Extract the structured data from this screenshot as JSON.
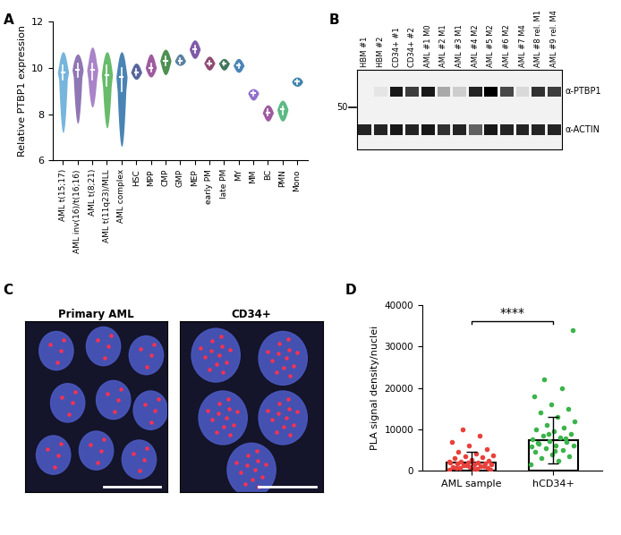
{
  "panel_labels": [
    "A",
    "B",
    "C",
    "D"
  ],
  "chart_data": [
    {
      "type": "violin",
      "ylabel": "Relative PTBP1 expression",
      "categories": [
        "AML t(15;17)",
        "AML inv(16)/t(16;16)",
        "AML t(8;21)",
        "AML t(11q23)/MLL",
        "AML complex",
        "HSC",
        "MPP",
        "CMP",
        "GMP",
        "MEP",
        "early PM",
        "late PM",
        "MY",
        "MM",
        "BC",
        "PMN",
        "Mono"
      ],
      "stats": [
        {
          "min": 7.2,
          "q1": 9.5,
          "median": 9.8,
          "q3": 10.1,
          "max": 10.7
        },
        {
          "min": 7.6,
          "q1": 9.6,
          "median": 9.9,
          "q3": 10.2,
          "max": 10.6
        },
        {
          "min": 8.3,
          "q1": 9.5,
          "median": 9.9,
          "q3": 10.2,
          "max": 10.9
        },
        {
          "min": 7.4,
          "q1": 9.2,
          "median": 9.7,
          "q3": 10.1,
          "max": 10.7
        },
        {
          "min": 6.6,
          "q1": 9.0,
          "median": 9.6,
          "q3": 10.0,
          "max": 10.7
        },
        {
          "min": 9.5,
          "q1": 9.7,
          "median": 9.8,
          "q3": 9.95,
          "max": 10.2
        },
        {
          "min": 9.6,
          "q1": 9.85,
          "median": 10.0,
          "q3": 10.2,
          "max": 10.6
        },
        {
          "min": 9.7,
          "q1": 10.1,
          "median": 10.3,
          "q3": 10.5,
          "max": 10.8
        },
        {
          "min": 10.1,
          "q1": 10.2,
          "median": 10.3,
          "q3": 10.4,
          "max": 10.6
        },
        {
          "min": 10.4,
          "q1": 10.65,
          "median": 10.8,
          "q3": 10.95,
          "max": 11.2
        },
        {
          "min": 9.9,
          "q1": 10.1,
          "median": 10.2,
          "q3": 10.3,
          "max": 10.5
        },
        {
          "min": 9.9,
          "q1": 10.1,
          "median": 10.2,
          "q3": 10.25,
          "max": 10.4
        },
        {
          "min": 9.8,
          "q1": 10.0,
          "median": 10.1,
          "q3": 10.2,
          "max": 10.4
        },
        {
          "min": 8.6,
          "q1": 8.8,
          "median": 8.9,
          "q3": 9.0,
          "max": 9.1
        },
        {
          "min": 7.7,
          "q1": 7.95,
          "median": 8.05,
          "q3": 8.2,
          "max": 8.4
        },
        {
          "min": 7.7,
          "q1": 8.0,
          "median": 8.2,
          "q3": 8.35,
          "max": 8.6
        },
        {
          "min": 9.2,
          "q1": 9.3,
          "median": 9.4,
          "q3": 9.5,
          "max": 9.6
        }
      ],
      "colors": [
        "#5fa8d8",
        "#7b5ea7",
        "#9b6fc0",
        "#4caf50",
        "#2a6fa8",
        "#3b4a8c",
        "#8e3e8e",
        "#2e7d32",
        "#3d6b8f",
        "#6a3d9a",
        "#7b2c5a",
        "#1e5e3e",
        "#2a6fa8",
        "#7e57c2",
        "#8e3e8e",
        "#3fae6e",
        "#1f6f9f"
      ],
      "ylim": [
        6,
        12
      ],
      "yticks": [
        6,
        8,
        10,
        12
      ]
    },
    {
      "type": "bar_scatter",
      "ylabel": "PLA signal density/nuclei",
      "categories": [
        "AML sample",
        "hCD34+"
      ],
      "values": [
        2000,
        7400
      ],
      "errors": [
        2600,
        5700
      ],
      "points": [
        [
          200,
          400,
          600,
          800,
          900,
          1000,
          1200,
          1300,
          1500,
          1600,
          1700,
          1800,
          1900,
          2000,
          2100,
          2300,
          2500,
          2700,
          3000,
          3200,
          3500,
          3800,
          4200,
          4600,
          5200,
          6000,
          7000,
          8500,
          10000,
          300,
          500,
          700,
          1100,
          1400,
          2200
        ],
        [
          1500,
          2500,
          3000,
          3500,
          4000,
          4500,
          5000,
          5500,
          6000,
          6200,
          6500,
          7000,
          7200,
          7500,
          8000,
          8500,
          9000,
          9500,
          10000,
          10500,
          11000,
          12000,
          13000,
          14000,
          15000,
          16000,
          18000,
          20000,
          22000,
          34000,
          4800,
          6800,
          7800,
          8800,
          5800
        ]
      ],
      "colors": [
        "#e8413c",
        "#3cb44b"
      ],
      "annotation": "****",
      "ylim": [
        0,
        40000
      ],
      "yticks": [
        0,
        10000,
        20000,
        30000,
        40000
      ]
    }
  ],
  "blot": {
    "lanes": [
      "HBM #1",
      "HBM #2",
      "CD34+ #1",
      "CD34+ #2",
      "AML #1 M0",
      "AML #2 M1",
      "AML #3 M1",
      "AML #4 M2",
      "AML #5 M2",
      "AML #6 M2",
      "AML #7 M4",
      "AML #8 rel. M1",
      "AML #9 rel. M4"
    ],
    "bands": [
      {
        "label": "α-PTBP1",
        "intensity": [
          0.0,
          0.05,
          0.9,
          0.75,
          0.9,
          0.3,
          0.15,
          0.85,
          1.0,
          0.7,
          0.1,
          0.8,
          0.75
        ]
      },
      {
        "label": "α-ACTIN",
        "intensity": [
          0.85,
          0.85,
          0.9,
          0.85,
          0.9,
          0.8,
          0.85,
          0.6,
          0.9,
          0.85,
          0.85,
          0.85,
          0.85
        ]
      }
    ],
    "size_marker": 50
  },
  "microscopy": {
    "images": [
      {
        "title": "Primary AML"
      },
      {
        "title": "CD34+"
      }
    ]
  }
}
